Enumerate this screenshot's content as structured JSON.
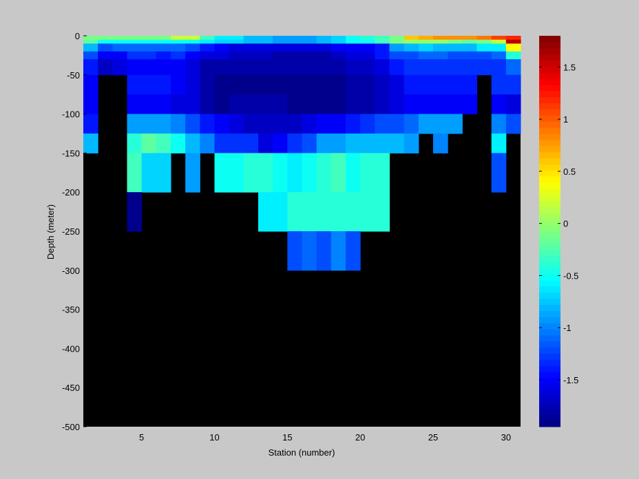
{
  "chart_data": {
    "type": "heatmap",
    "title": "",
    "xlabel": "Station (number)",
    "ylabel": "Depth (meter)",
    "xlim": [
      1,
      31
    ],
    "ylim": [
      -500,
      0
    ],
    "xticks": [
      5,
      10,
      15,
      20,
      25,
      30
    ],
    "yticks": [
      0,
      -50,
      -100,
      -150,
      -200,
      -250,
      -300,
      -350,
      -400,
      -450,
      -500
    ],
    "stations": [
      1,
      2,
      3,
      4,
      5,
      6,
      7,
      8,
      9,
      10,
      11,
      12,
      13,
      14,
      15,
      16,
      17,
      18,
      19,
      20,
      21,
      22,
      23,
      24,
      25,
      26,
      27,
      28,
      29,
      30
    ],
    "depth_edges": [
      -5,
      -10,
      -20,
      -30,
      -50,
      -75,
      -100,
      -125,
      -150,
      -200,
      -250,
      -300,
      -400
    ],
    "missing_color": "#000000",
    "colorbar": {
      "min": -1.95,
      "max": 1.8,
      "ticks": [
        1.5,
        1,
        0.5,
        0,
        -0.5,
        -1,
        -1.5
      ],
      "colormap": "jet"
    },
    "values": [
      [
        -0.1,
        -0.1,
        -0.1,
        -0.1,
        -0.1,
        -0.1,
        0.2,
        0.2,
        -0.3,
        -0.6,
        -0.6,
        -0.8,
        -0.8,
        -0.9,
        -0.9,
        -0.9,
        -0.8,
        -0.7,
        -0.5,
        -0.4,
        -0.3,
        -0.1,
        0.6,
        0.7,
        0.8,
        0.8,
        0.8,
        0.9,
        1.1,
        1.2
      ],
      [
        -0.2,
        -0.5,
        -0.5,
        -0.5,
        -0.5,
        -0.5,
        -0.5,
        -0.5,
        -0.6,
        -0.7,
        -0.7,
        -0.8,
        -0.8,
        -0.9,
        -0.9,
        -0.9,
        -0.8,
        -0.7,
        -0.5,
        -0.5,
        -0.3,
        -0.1,
        0.0,
        0.0,
        0.0,
        -0.1,
        -0.2,
        -0.1,
        0.2,
        1.6
      ],
      [
        -0.8,
        -1.2,
        -1.1,
        -1.1,
        -1.1,
        -1.1,
        -1.1,
        -1.2,
        -1.4,
        -1.5,
        -1.6,
        -1.6,
        -1.6,
        -1.6,
        -1.6,
        -1.6,
        -1.6,
        -1.5,
        -1.5,
        -1.5,
        -1.4,
        -0.9,
        -0.8,
        -0.7,
        -0.8,
        -0.8,
        -0.8,
        -0.6,
        -0.6,
        0.4
      ],
      [
        -1.2,
        -1.5,
        -1.5,
        -1.3,
        -1.3,
        -1.4,
        -1.3,
        -1.5,
        -1.6,
        -1.6,
        -1.7,
        -1.7,
        -1.7,
        -1.8,
        -1.8,
        -1.8,
        -1.8,
        -1.7,
        -1.6,
        -1.6,
        -1.4,
        -1.2,
        -1.2,
        -1.1,
        -1.1,
        -1.2,
        -1.2,
        -1.2,
        -1.1,
        -0.4
      ],
      [
        -1.4,
        -1.7,
        -1.6,
        -1.5,
        -1.5,
        -1.5,
        -1.5,
        -1.6,
        -1.8,
        -1.8,
        -1.8,
        -1.8,
        -1.8,
        -1.8,
        -1.8,
        -1.8,
        -1.8,
        -1.8,
        -1.7,
        -1.7,
        -1.6,
        -1.4,
        -1.3,
        -1.3,
        -1.3,
        -1.3,
        -1.3,
        -1.3,
        -1.3,
        -1.1
      ],
      [
        -1.5,
        null,
        null,
        -1.4,
        -1.4,
        -1.4,
        -1.5,
        -1.6,
        -1.8,
        -1.9,
        -1.9,
        -1.9,
        -1.9,
        -1.9,
        -1.9,
        -1.9,
        -1.9,
        -1.9,
        -1.8,
        -1.8,
        -1.7,
        -1.6,
        -1.4,
        -1.4,
        -1.4,
        -1.4,
        -1.4,
        null,
        -1.3,
        -1.3
      ],
      [
        -1.5,
        null,
        null,
        -1.5,
        -1.5,
        -1.5,
        -1.6,
        -1.6,
        -1.8,
        -1.9,
        -1.8,
        -1.8,
        -1.8,
        -1.8,
        -1.9,
        -1.9,
        -1.9,
        -1.9,
        -1.8,
        -1.8,
        -1.7,
        -1.6,
        -1.5,
        -1.5,
        -1.5,
        -1.5,
        -1.5,
        null,
        -1.5,
        -1.6
      ],
      [
        -1.4,
        null,
        null,
        -0.9,
        -0.9,
        -0.9,
        -1.0,
        -1.2,
        -1.4,
        -1.5,
        -1.6,
        -1.7,
        -1.7,
        -1.7,
        -1.7,
        -1.6,
        -1.5,
        -1.5,
        -1.4,
        -1.3,
        -1.2,
        -1.2,
        -1.1,
        -0.9,
        -0.9,
        -0.9,
        null,
        null,
        -1.0,
        -1.2
      ],
      [
        -0.8,
        null,
        null,
        -0.4,
        -0.2,
        -0.3,
        -0.5,
        -0.8,
        -1.0,
        -1.3,
        -1.3,
        -1.3,
        -1.6,
        -1.5,
        -1.3,
        -1.2,
        -0.9,
        -0.9,
        -0.8,
        -0.8,
        -0.8,
        -0.8,
        -0.9,
        null,
        -1.0,
        null,
        null,
        null,
        -0.6,
        null
      ],
      [
        null,
        null,
        null,
        -0.3,
        -0.7,
        -0.7,
        null,
        -0.9,
        null,
        -0.5,
        -0.5,
        -0.4,
        -0.4,
        -0.5,
        -0.6,
        -0.5,
        -0.4,
        -0.3,
        -0.5,
        -0.4,
        -0.4,
        null,
        null,
        null,
        null,
        null,
        null,
        null,
        -1.2,
        null
      ],
      [
        null,
        null,
        null,
        -1.9,
        null,
        null,
        null,
        null,
        null,
        null,
        null,
        null,
        -0.6,
        -0.6,
        -0.4,
        -0.4,
        -0.4,
        -0.4,
        -0.4,
        -0.4,
        -0.4,
        null,
        null,
        null,
        null,
        null,
        null,
        null,
        null,
        null
      ],
      [
        null,
        null,
        null,
        null,
        null,
        null,
        null,
        null,
        null,
        null,
        null,
        null,
        null,
        null,
        -1.2,
        -1.1,
        -1.2,
        -1.0,
        -1.2,
        null,
        null,
        null,
        null,
        null,
        null,
        null,
        null,
        null,
        null,
        null
      ]
    ]
  }
}
